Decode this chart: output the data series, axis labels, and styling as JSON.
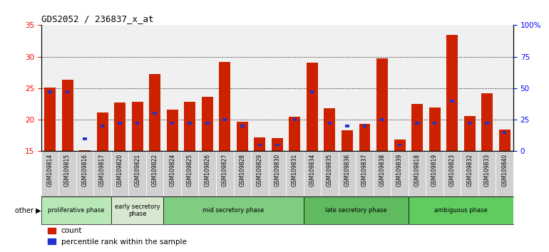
{
  "title": "GDS2052 / 236837_x_at",
  "samples": [
    "GSM109814",
    "GSM109815",
    "GSM109816",
    "GSM109817",
    "GSM109820",
    "GSM109821",
    "GSM109822",
    "GSM109824",
    "GSM109825",
    "GSM109826",
    "GSM109827",
    "GSM109828",
    "GSM109829",
    "GSM109830",
    "GSM109831",
    "GSM109834",
    "GSM109835",
    "GSM109836",
    "GSM109837",
    "GSM109838",
    "GSM109839",
    "GSM109818",
    "GSM109819",
    "GSM109823",
    "GSM109832",
    "GSM109833",
    "GSM109840"
  ],
  "count_values": [
    25.1,
    26.3,
    15.2,
    21.2,
    22.7,
    22.8,
    27.3,
    21.6,
    22.8,
    23.6,
    29.2,
    19.7,
    17.2,
    17.1,
    20.5,
    29.0,
    21.8,
    18.3,
    19.3,
    29.7,
    16.9,
    22.5,
    21.9,
    33.5,
    20.6,
    24.2,
    18.4
  ],
  "blue_values_pct": [
    47,
    47,
    10,
    20,
    22,
    22,
    30,
    22,
    22,
    22,
    25,
    20,
    5,
    5,
    25,
    47,
    22,
    20,
    20,
    25,
    5,
    22,
    22,
    40,
    22,
    22,
    15
  ],
  "phases": [
    {
      "name": "proliferative phase",
      "start": 0,
      "end": 4,
      "color": "#b8e8b8"
    },
    {
      "name": "early secretory\nphase",
      "start": 4,
      "end": 7,
      "color": "#d8e8d0"
    },
    {
      "name": "mid secretory phase",
      "start": 7,
      "end": 15,
      "color": "#80cc80"
    },
    {
      "name": "late secretory phase",
      "start": 15,
      "end": 21,
      "color": "#60bb60"
    },
    {
      "name": "ambiguous phase",
      "start": 21,
      "end": 27,
      "color": "#60cc60"
    }
  ],
  "ylim_left": [
    15,
    35
  ],
  "ylim_right": [
    0,
    100
  ],
  "yticks_left": [
    15,
    20,
    25,
    30,
    35
  ],
  "yticks_right": [
    0,
    25,
    50,
    75,
    100
  ],
  "bar_color_red": "#cc2200",
  "bar_color_blue": "#2233cc",
  "bg_color": "#f0f0f0",
  "title_fontsize": 9,
  "legend_count": "count",
  "legend_pct": "percentile rank within the sample"
}
